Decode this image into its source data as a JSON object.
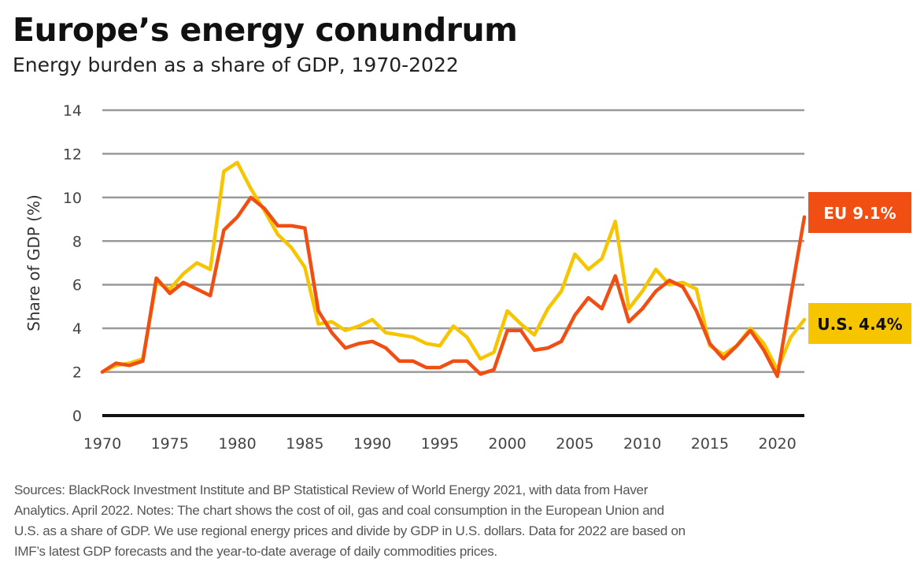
{
  "header": {
    "title": "Europe’s energy conundrum",
    "subtitle": "Energy burden as a share of GDP, 1970-2022"
  },
  "chart_data": {
    "type": "line",
    "title": "Europe’s energy conundrum",
    "subtitle": "Energy burden as a share of GDP, 1970-2022",
    "xlabel": "",
    "ylabel": "Share of GDP (%)",
    "xlim": [
      1970,
      2022
    ],
    "ylim": [
      0,
      14
    ],
    "yticks": [
      0,
      2,
      4,
      6,
      8,
      10,
      12,
      14
    ],
    "xticks": [
      1970,
      1975,
      1980,
      1985,
      1990,
      1995,
      2000,
      2005,
      2010,
      2015,
      2020
    ],
    "grid": true,
    "x": [
      1970,
      1971,
      1972,
      1973,
      1974,
      1975,
      1976,
      1977,
      1978,
      1979,
      1980,
      1981,
      1982,
      1983,
      1984,
      1985,
      1986,
      1987,
      1988,
      1989,
      1990,
      1991,
      1992,
      1993,
      1994,
      1995,
      1996,
      1997,
      1998,
      1999,
      2000,
      2001,
      2002,
      2003,
      2004,
      2005,
      2006,
      2007,
      2008,
      2009,
      2010,
      2011,
      2012,
      2013,
      2014,
      2015,
      2016,
      2017,
      2018,
      2019,
      2020,
      2021,
      2022
    ],
    "series": [
      {
        "name": "U.S.",
        "color": "#f7c500",
        "end_label": "U.S. 4.4%",
        "values": [
          2.0,
          2.3,
          2.4,
          2.6,
          6.1,
          5.8,
          6.5,
          7.0,
          6.7,
          11.2,
          11.6,
          10.4,
          9.4,
          8.3,
          7.7,
          6.8,
          4.2,
          4.3,
          3.9,
          4.1,
          4.4,
          3.8,
          3.7,
          3.6,
          3.3,
          3.2,
          4.1,
          3.6,
          2.6,
          2.9,
          4.8,
          4.2,
          3.7,
          4.9,
          5.7,
          7.4,
          6.7,
          7.2,
          8.9,
          4.9,
          5.7,
          6.7,
          6.0,
          6.1,
          5.8,
          3.2,
          2.8,
          3.2,
          4.0,
          3.3,
          2.1,
          3.6,
          4.4
        ]
      },
      {
        "name": "EU",
        "color": "#f04e12",
        "end_label": "EU 9.1%",
        "values": [
          2.0,
          2.4,
          2.3,
          2.5,
          6.3,
          5.6,
          6.1,
          5.8,
          5.5,
          8.5,
          9.1,
          10.0,
          9.5,
          8.7,
          8.7,
          8.6,
          4.8,
          3.8,
          3.1,
          3.3,
          3.4,
          3.1,
          2.5,
          2.5,
          2.2,
          2.2,
          2.5,
          2.5,
          1.9,
          2.1,
          3.9,
          3.9,
          3.0,
          3.1,
          3.4,
          4.6,
          5.4,
          4.9,
          6.4,
          4.3,
          4.9,
          5.7,
          6.2,
          5.9,
          4.8,
          3.3,
          2.6,
          3.2,
          3.9,
          3.0,
          1.8,
          5.5,
          9.1
        ]
      }
    ],
    "annotations": [
      "EU 9.1%",
      "U.S. 4.4%"
    ]
  },
  "footer": {
    "notes_lines": [
      "Sources: BlackRock Investment Institute and BP Statistical Review of World Energy 2021, with data from Haver",
      "Analytics. April 2022. Notes: The chart shows the cost of oil, gas and coal consumption in the European Union and",
      "U.S. as a share of GDP. We use regional energy prices and divide by GDP in U.S. dollars. Data for 2022 are based on",
      "IMF’s latest GDP forecasts and the year-to-date average of daily commodities prices."
    ]
  }
}
